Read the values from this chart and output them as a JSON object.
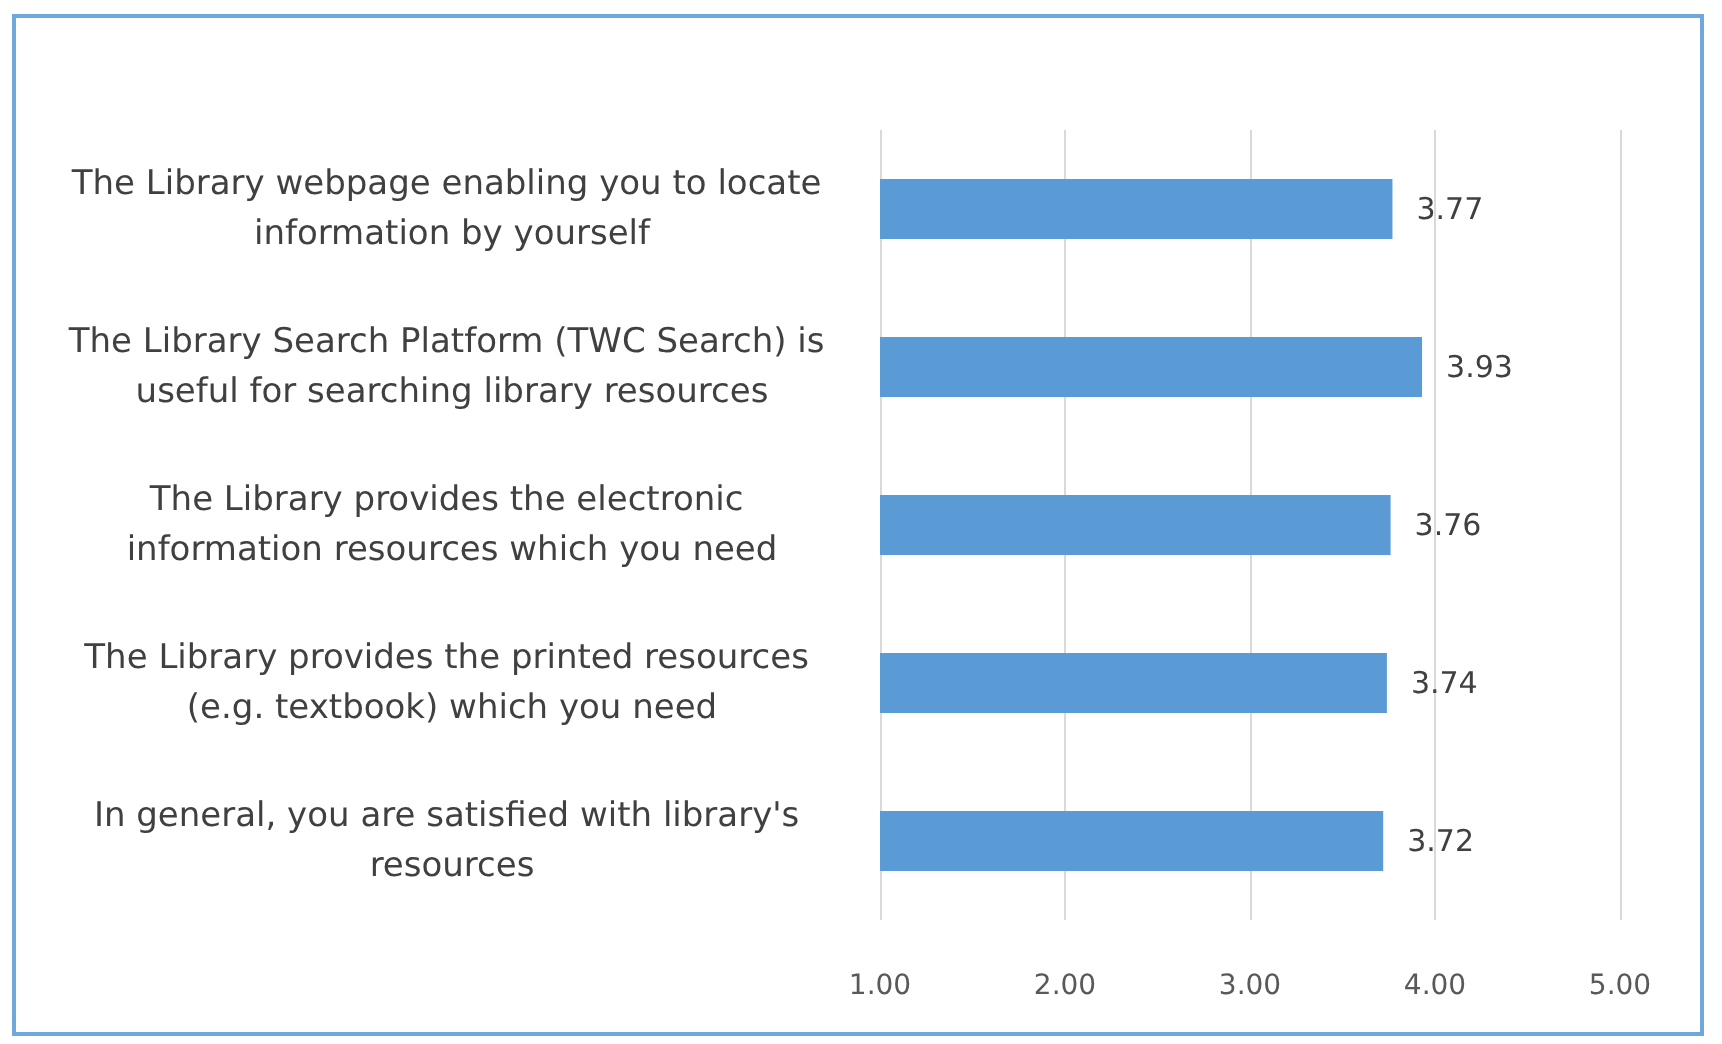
{
  "chart_data": {
    "type": "bar",
    "orientation": "horizontal",
    "categories": [
      "The Library webpage enabling you to locate information by yourself",
      "The Library Search Platform (TWC Search) is useful for searching library resources",
      "The Library provides the electronic information resources which you need",
      "The Library provides the printed resources (e.g. textbook) which you need",
      "In general, you are satisfied with library's resources"
    ],
    "values": [
      3.77,
      3.93,
      3.76,
      3.74,
      3.72
    ],
    "color": "#5b9bd5",
    "xlim": [
      1,
      5
    ],
    "xticks": [
      {
        "value": 1,
        "label": "1.00"
      },
      {
        "value": 2,
        "label": "2.00"
      },
      {
        "value": 3,
        "label": "3.00"
      },
      {
        "value": 4,
        "label": "4.00"
      },
      {
        "value": 5,
        "label": "5.00"
      }
    ],
    "grid": "x",
    "data_labels": true
  }
}
